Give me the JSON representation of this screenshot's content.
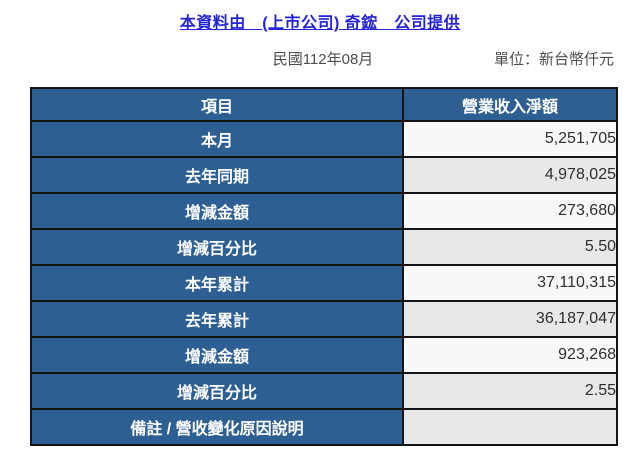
{
  "header": {
    "title": "本資料由　(上市公司) 奇鋐　公司提供",
    "period": "民國112年08月",
    "unit": "單位：新台幣仟元"
  },
  "table": {
    "columns": [
      "項目",
      "營業收入淨額"
    ],
    "rows": [
      {
        "label": "本月",
        "value": "5,251,705"
      },
      {
        "label": "去年同期",
        "value": "4,978,025"
      },
      {
        "label": "增減金額",
        "value": "273,680"
      },
      {
        "label": "增減百分比",
        "value": "5.50"
      },
      {
        "label": "本年累計",
        "value": "37,110,315"
      },
      {
        "label": "去年累計",
        "value": "36,187,047"
      },
      {
        "label": "增減金額",
        "value": "923,268"
      },
      {
        "label": "增減百分比",
        "value": "2.55"
      },
      {
        "label": "備註 / 營收變化原因說明",
        "value": ""
      }
    ]
  },
  "colors": {
    "header_bg": "#2D5F92",
    "title_link": "#2424D6",
    "row_light": "#F8F8F8",
    "row_shaded": "#E8E8E8",
    "border": "#141414",
    "subheader_text": "#4D4D4D"
  }
}
